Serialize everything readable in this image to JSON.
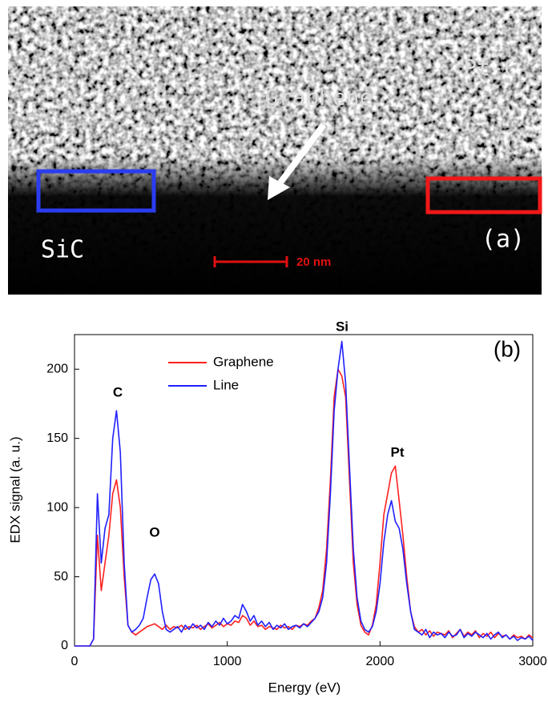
{
  "image": {
    "labels": {
      "top_right": "Pt-C",
      "layer": "Graphene",
      "substrate": "SiC",
      "panel": "(a)",
      "scale": "20 nm"
    }
  },
  "chart_data": {
    "type": "line",
    "x_label": "Energy (eV)",
    "y_label": "EDX signal (a. u.)",
    "annotations": {
      "panel": "(b)",
      "c": "C",
      "o": "O",
      "si": "Si",
      "pt": "Pt"
    },
    "x": [
      0,
      25,
      50,
      75,
      100,
      125,
      150,
      175,
      200,
      225,
      250,
      275,
      300,
      325,
      350,
      375,
      400,
      425,
      450,
      475,
      500,
      525,
      550,
      575,
      600,
      625,
      650,
      675,
      700,
      725,
      750,
      775,
      800,
      825,
      850,
      875,
      900,
      925,
      950,
      975,
      1000,
      1025,
      1050,
      1075,
      1100,
      1125,
      1150,
      1175,
      1200,
      1225,
      1250,
      1275,
      1300,
      1325,
      1350,
      1375,
      1400,
      1425,
      1450,
      1475,
      1500,
      1525,
      1550,
      1575,
      1600,
      1625,
      1650,
      1675,
      1700,
      1725,
      1750,
      1775,
      1800,
      1825,
      1850,
      1875,
      1900,
      1925,
      1950,
      1975,
      2000,
      2025,
      2050,
      2075,
      2100,
      2125,
      2150,
      2175,
      2200,
      2225,
      2250,
      2275,
      2300,
      2325,
      2350,
      2375,
      2400,
      2425,
      2450,
      2475,
      2500,
      2525,
      2550,
      2575,
      2600,
      2625,
      2650,
      2675,
      2700,
      2725,
      2750,
      2775,
      2800,
      2825,
      2850,
      2875,
      2900,
      2925,
      2950,
      2975,
      3000
    ],
    "series": [
      {
        "name": "Graphene",
        "color": "#ff2020",
        "values": [
          0,
          0,
          0,
          0,
          0,
          5,
          80,
          40,
          60,
          80,
          110,
          120,
          100,
          50,
          15,
          10,
          8,
          10,
          12,
          14,
          15,
          16,
          14,
          12,
          15,
          12,
          14,
          13,
          15,
          12,
          14,
          13,
          15,
          12,
          14,
          16,
          13,
          15,
          17,
          14,
          16,
          15,
          18,
          17,
          22,
          20,
          15,
          18,
          14,
          15,
          12,
          14,
          13,
          12,
          15,
          13,
          14,
          12,
          15,
          14,
          16,
          15,
          18,
          20,
          28,
          40,
          70,
          120,
          180,
          200,
          195,
          180,
          120,
          60,
          30,
          15,
          10,
          8,
          15,
          30,
          60,
          95,
          110,
          125,
          130,
          105,
          80,
          50,
          25,
          14,
          10,
          12,
          8,
          11,
          7,
          10,
          9,
          8,
          11,
          6,
          9,
          12,
          7,
          10,
          8,
          11,
          6,
          9,
          7,
          10,
          6,
          9,
          7,
          8,
          5,
          8,
          6,
          7,
          5,
          8,
          6
        ]
      },
      {
        "name": "Line",
        "color": "#2020ff",
        "values": [
          0,
          0,
          0,
          0,
          0,
          5,
          110,
          60,
          85,
          95,
          150,
          170,
          140,
          60,
          15,
          10,
          12,
          15,
          20,
          35,
          48,
          52,
          45,
          25,
          12,
          10,
          12,
          14,
          10,
          15,
          12,
          16,
          13,
          15,
          12,
          17,
          14,
          18,
          15,
          20,
          16,
          18,
          22,
          20,
          30,
          25,
          18,
          22,
          15,
          18,
          14,
          17,
          12,
          15,
          13,
          16,
          12,
          14,
          15,
          13,
          16,
          14,
          17,
          20,
          25,
          35,
          60,
          110,
          170,
          200,
          220,
          190,
          130,
          70,
          35,
          18,
          12,
          10,
          14,
          25,
          45,
          75,
          95,
          105,
          90,
          85,
          70,
          45,
          25,
          12,
          10,
          8,
          12,
          6,
          10,
          8,
          9,
          6,
          10,
          7,
          8,
          12,
          6,
          9,
          7,
          10,
          8,
          6,
          9,
          5,
          8,
          10,
          6,
          8,
          5,
          7,
          4,
          6,
          5,
          7,
          4
        ]
      }
    ],
    "xlim": [
      0,
      3000
    ],
    "xticks": [
      0,
      1000,
      2000,
      3000
    ],
    "ylim": [
      0,
      225
    ],
    "yticks": [
      0,
      50,
      100,
      150,
      200
    ]
  }
}
